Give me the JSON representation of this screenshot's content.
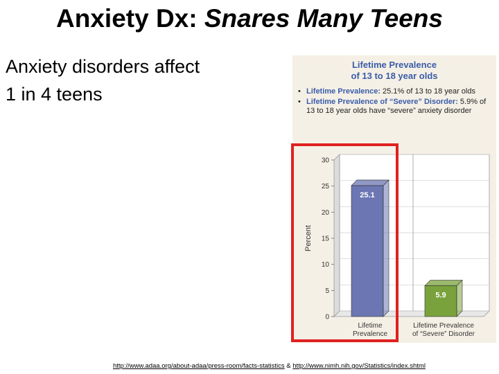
{
  "slide": {
    "title_main": "Anxiety Dx: ",
    "title_italic": "Snares Many Teens",
    "body_line1": "Anxiety disorders affect",
    "body_line2": "1 in 4 teens"
  },
  "figure": {
    "heading_line1": "Lifetime Prevalence",
    "heading_line2": "of 13 to 18 year olds",
    "bullets": [
      {
        "label": "Lifetime Prevalence:",
        "text": " 25.1% of 13 to 18 year olds"
      },
      {
        "label": "Lifetime Prevalence of “Severe” Disorder:",
        "text": " 5.9% of 13 to 18 year olds have “severe” anxiety disorder"
      }
    ],
    "bullet_glyph": "•"
  },
  "chart_data": {
    "type": "bar",
    "categories": [
      "Lifetime Prevalence",
      "Lifetime Prevalence of “Severe” Disorder"
    ],
    "category_lines": [
      [
        "Lifetime",
        "Prevalence"
      ],
      [
        "Lifetime Prevalence",
        "of “Severe” Disorder"
      ]
    ],
    "values": [
      25.1,
      5.9
    ],
    "value_labels": [
      "25.1",
      "5.9"
    ],
    "ylabel": "Percent",
    "ylim": [
      0,
      30
    ],
    "yticks": [
      0,
      5,
      10,
      15,
      20,
      25,
      30
    ],
    "colors": [
      "#6b76b3",
      "#7aa23c"
    ],
    "highlight_color": "#e02020"
  },
  "footer": {
    "link1": "http://www.adaa.org/about-adaa/press-room/facts-statistics",
    "separator": " & ",
    "link2": "http://www.nimh.nih.gov/Statistics/index.shtml"
  }
}
